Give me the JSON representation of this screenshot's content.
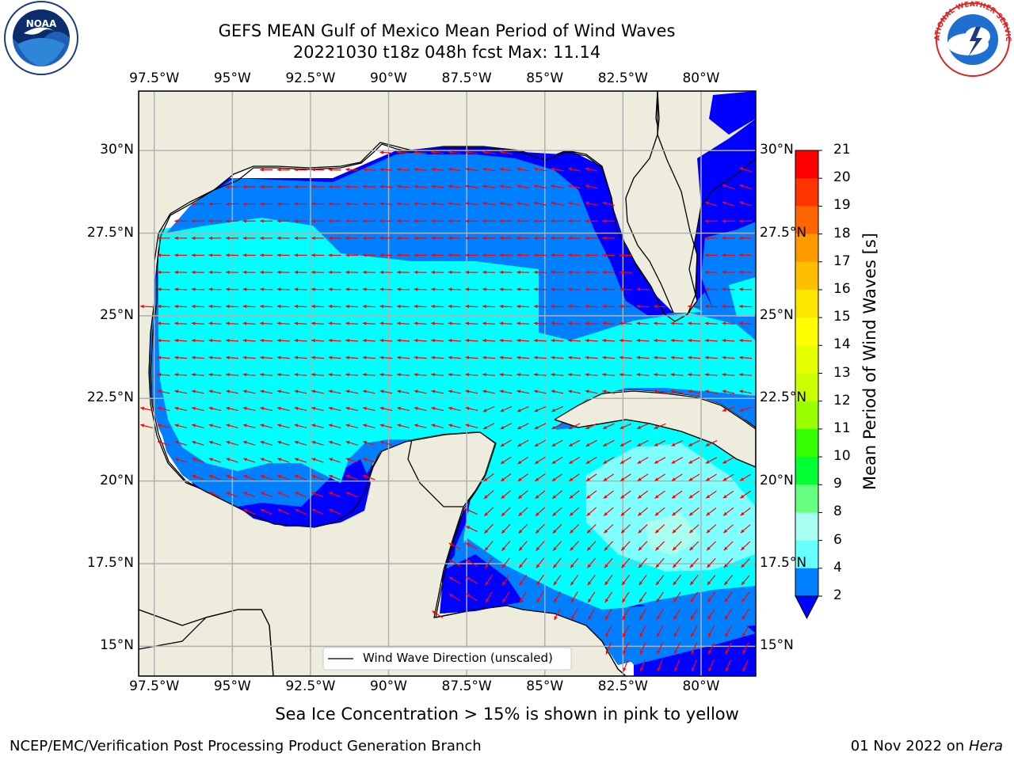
{
  "header": {
    "title_line1": "GEFS MEAN Gulf of Mexico Mean Period of Wind Waves",
    "title_line2": "20221030 t18z 048h fcst   Max: 11.14",
    "left_logo_text": "NOAA",
    "right_logo_text": "NATIONAL WEATHER SERVICE"
  },
  "map": {
    "lon_ticks": [
      "97.5°W",
      "95°W",
      "92.5°W",
      "90°W",
      "87.5°W",
      "85°W",
      "82.5°W",
      "80°W"
    ],
    "lat_ticks": [
      "30°N",
      "27.5°N",
      "25°N",
      "22.5°N",
      "20°N",
      "17.5°N",
      "15°N"
    ],
    "legend_label": "Wind Wave Direction (unscaled)",
    "colors": {
      "land": "#eeecdc",
      "ocean_deep": "#0000ff",
      "band_2_4": "#0080ff",
      "band_4_6": "#00ffff",
      "band_6_8": "#80ffff",
      "arrow": "#ff0000"
    }
  },
  "colorbar": {
    "label": "Mean Period of Wind Waves [s]",
    "ticks": [
      "21",
      "20",
      "19",
      "18",
      "17",
      "16",
      "15",
      "14",
      "13",
      "12",
      "11",
      "10",
      "9",
      "8",
      "6",
      "4",
      "2"
    ],
    "colors": [
      "#ff0000",
      "#ff3300",
      "#ff6600",
      "#ff9900",
      "#ffbf00",
      "#ffe600",
      "#ffff00",
      "#e6ff00",
      "#ccff00",
      "#99ff00",
      "#33ff00",
      "#00ff33",
      "#66ff80",
      "#a8ffef",
      "#66ffff",
      "#00ffff",
      "#0080ff"
    ]
  },
  "caption": "Sea Ice Concentration > 15% is shown in pink to yellow",
  "footer": {
    "left": "NCEP/EMC/Verification Post Processing Product Generation Branch",
    "right_date": "01 Nov 2022 on ",
    "right_host": "Hera"
  }
}
